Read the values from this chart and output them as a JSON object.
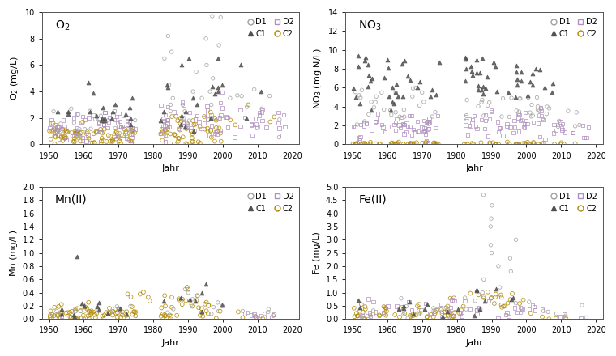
{
  "panels": [
    {
      "title": "O$_2$",
      "ylabel": "O$_2$ (mg/L)",
      "ylim": [
        0,
        10
      ],
      "yticks": [
        0,
        2,
        4,
        6,
        8,
        10
      ],
      "xlim": [
        1948,
        2022
      ],
      "xticks": [
        1950,
        1960,
        1970,
        1980,
        1990,
        2000,
        2010,
        2020
      ]
    },
    {
      "title": "NO$_3$",
      "ylabel": "NO$_3$ (mg N/L)",
      "ylim": [
        0,
        14
      ],
      "yticks": [
        0,
        2,
        4,
        6,
        8,
        10,
        12,
        14
      ],
      "xlim": [
        1948,
        2022
      ],
      "xticks": [
        1950,
        1960,
        1970,
        1980,
        1990,
        2000,
        2010,
        2020
      ]
    },
    {
      "title": "Mn(II)",
      "ylabel": "Mn (mg/L)",
      "ylim": [
        0,
        2
      ],
      "yticks": [
        0,
        0.2,
        0.4,
        0.6,
        0.8,
        1.0,
        1.2,
        1.4,
        1.6,
        1.8,
        2.0
      ],
      "xlim": [
        1948,
        2022
      ],
      "xticks": [
        1950,
        1960,
        1970,
        1980,
        1990,
        2000,
        2010,
        2020
      ]
    },
    {
      "title": "Fe(II)",
      "ylabel": "Fe (mg/L)",
      "ylim": [
        0,
        5
      ],
      "yticks": [
        0,
        0.5,
        1.0,
        1.5,
        2.0,
        2.5,
        3.0,
        3.5,
        4.0,
        4.5,
        5.0
      ],
      "xlim": [
        1948,
        2022
      ],
      "xticks": [
        1950,
        1960,
        1970,
        1980,
        1990,
        2000,
        2010,
        2020
      ]
    }
  ],
  "xlabel": "Jahr"
}
